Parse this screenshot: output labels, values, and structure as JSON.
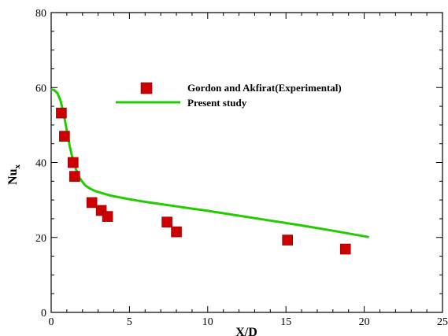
{
  "chart_data": {
    "type": "scatter",
    "xlabel": "X/D",
    "ylabel_main": "Nu",
    "ylabel_sub": "x",
    "xlim": [
      0,
      25
    ],
    "ylim": [
      0,
      80
    ],
    "x_ticks": [
      0,
      5,
      10,
      15,
      20,
      25
    ],
    "y_ticks": [
      0,
      20,
      40,
      60,
      80
    ],
    "x_minor_step": 1,
    "y_minor_step": 5,
    "grid": false,
    "legend_position": "top-center",
    "series": [
      {
        "name": "Gordon and Akfirat(Experimental)",
        "type": "scatter",
        "marker": "square",
        "color": "#cc0000",
        "x": [
          0.65,
          0.85,
          1.4,
          1.5,
          2.6,
          3.2,
          3.6,
          7.4,
          8.0,
          15.1,
          18.8
        ],
        "y": [
          53.2,
          47,
          40,
          36.3,
          29.3,
          27.2,
          25.6,
          24.1,
          21.5,
          19.3,
          16.9
        ]
      },
      {
        "name": "Present study",
        "type": "line",
        "color": "#22cc00",
        "x": [
          0,
          0.2,
          0.4,
          0.6,
          0.8,
          1.0,
          1.2,
          1.4,
          1.6,
          1.8,
          2.0,
          2.2,
          2.5,
          2.8,
          3.2,
          3.6,
          4.0,
          5.0,
          6.0,
          7.0,
          8.0,
          9.0,
          10.0,
          12.0,
          14.0,
          16.0,
          18.0,
          20.3
        ],
        "y": [
          59.5,
          59.3,
          58.5,
          56.5,
          53.0,
          48.5,
          44.0,
          40.5,
          38.0,
          36.0,
          34.8,
          33.8,
          33.0,
          32.4,
          31.9,
          31.4,
          31.0,
          30.2,
          29.5,
          28.9,
          28.3,
          27.7,
          27.1,
          25.8,
          24.5,
          23.2,
          21.8,
          20.1
        ]
      }
    ]
  }
}
